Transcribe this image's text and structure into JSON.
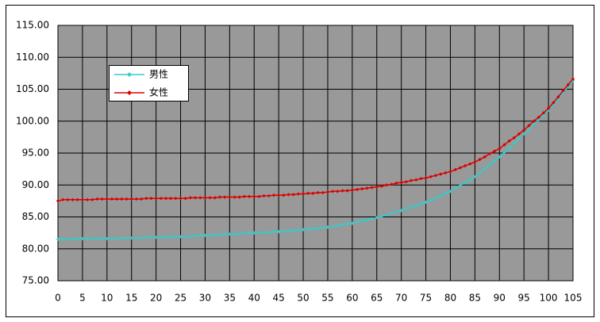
{
  "chart_data": {
    "type": "line",
    "x": [
      0,
      1,
      2,
      3,
      4,
      5,
      6,
      7,
      8,
      9,
      10,
      11,
      12,
      13,
      14,
      15,
      16,
      17,
      18,
      19,
      20,
      21,
      22,
      23,
      24,
      25,
      26,
      27,
      28,
      29,
      30,
      31,
      32,
      33,
      34,
      35,
      36,
      37,
      38,
      39,
      40,
      41,
      42,
      43,
      44,
      45,
      46,
      47,
      48,
      49,
      50,
      51,
      52,
      53,
      54,
      55,
      56,
      57,
      58,
      59,
      60,
      61,
      62,
      63,
      64,
      65,
      66,
      67,
      68,
      69,
      70,
      71,
      72,
      73,
      74,
      75,
      76,
      77,
      78,
      79,
      80,
      81,
      82,
      83,
      84,
      85,
      86,
      87,
      88,
      89,
      90,
      91,
      92,
      93,
      94,
      95,
      96,
      97,
      98,
      99,
      100,
      101,
      102,
      103,
      104,
      105
    ],
    "series": [
      {
        "name": "男性",
        "color": "#33cccc",
        "values": [
          81.5,
          81.5,
          81.5,
          81.6,
          81.6,
          81.6,
          81.6,
          81.6,
          81.6,
          81.6,
          81.6,
          81.6,
          81.6,
          81.7,
          81.7,
          81.7,
          81.7,
          81.7,
          81.8,
          81.8,
          81.8,
          81.8,
          81.8,
          81.9,
          81.9,
          81.9,
          81.9,
          82.0,
          82.0,
          82.1,
          82.1,
          82.1,
          82.2,
          82.2,
          82.3,
          82.3,
          82.3,
          82.4,
          82.4,
          82.5,
          82.5,
          82.5,
          82.6,
          82.6,
          82.7,
          82.7,
          82.8,
          82.8,
          82.9,
          82.9,
          83.0,
          83.1,
          83.2,
          83.2,
          83.3,
          83.4,
          83.5,
          83.6,
          83.8,
          83.9,
          84.0,
          84.2,
          84.4,
          84.5,
          84.7,
          84.9,
          85.1,
          85.3,
          85.6,
          85.8,
          86.0,
          86.3,
          86.5,
          86.8,
          87.0,
          87.3,
          87.6,
          88.0,
          88.3,
          88.7,
          89.0,
          89.5,
          89.9,
          90.4,
          90.8,
          91.3,
          91.9,
          92.5,
          93.2,
          93.8,
          94.4,
          95.1,
          95.8,
          96.6,
          97.3,
          98.0,
          98.7,
          99.5,
          100.2,
          101.0,
          101.7,
          102.6,
          103.5,
          104.5,
          105.4,
          106.3
        ]
      },
      {
        "name": "女性",
        "color": "#dd0000",
        "values": [
          87.5,
          87.7,
          87.7,
          87.7,
          87.7,
          87.7,
          87.7,
          87.7,
          87.8,
          87.8,
          87.8,
          87.8,
          87.8,
          87.8,
          87.8,
          87.8,
          87.8,
          87.8,
          87.9,
          87.9,
          87.9,
          87.9,
          87.9,
          87.9,
          87.9,
          87.9,
          87.9,
          88.0,
          88.0,
          88.0,
          88.0,
          88.0,
          88.0,
          88.1,
          88.1,
          88.1,
          88.1,
          88.1,
          88.2,
          88.2,
          88.2,
          88.2,
          88.3,
          88.3,
          88.4,
          88.4,
          88.4,
          88.5,
          88.5,
          88.6,
          88.6,
          88.7,
          88.7,
          88.8,
          88.8,
          88.9,
          89.0,
          89.0,
          89.1,
          89.1,
          89.2,
          89.3,
          89.4,
          89.5,
          89.6,
          89.7,
          89.8,
          90.0,
          90.1,
          90.3,
          90.4,
          90.5,
          90.7,
          90.8,
          91.0,
          91.1,
          91.3,
          91.5,
          91.7,
          91.9,
          92.1,
          92.4,
          92.7,
          93.0,
          93.3,
          93.6,
          94.0,
          94.4,
          94.9,
          95.3,
          95.7,
          96.3,
          96.9,
          97.4,
          98.0,
          98.6,
          99.3,
          100.0,
          100.6,
          101.3,
          102.0,
          102.9,
          103.8,
          104.8,
          105.7,
          106.6
        ]
      }
    ],
    "xlim": [
      0,
      105
    ],
    "xticks": [
      0,
      5,
      10,
      15,
      20,
      25,
      30,
      35,
      40,
      45,
      50,
      55,
      60,
      65,
      70,
      75,
      80,
      85,
      90,
      95,
      100,
      105
    ],
    "ylim": [
      75,
      115
    ],
    "yticks": [
      {
        "value": 75,
        "label": "75.00"
      },
      {
        "value": 80,
        "label": "80.00"
      },
      {
        "value": 85,
        "label": "85.00"
      },
      {
        "value": 90,
        "label": "90.00"
      },
      {
        "value": 95,
        "label": "95.00"
      },
      {
        "value": 100,
        "label": "100.00"
      },
      {
        "value": 105,
        "label": "105.00"
      },
      {
        "value": 110,
        "label": "110.00"
      },
      {
        "value": 115,
        "label": "115.00"
      }
    ],
    "grid": true,
    "plot_background": "#999999"
  }
}
